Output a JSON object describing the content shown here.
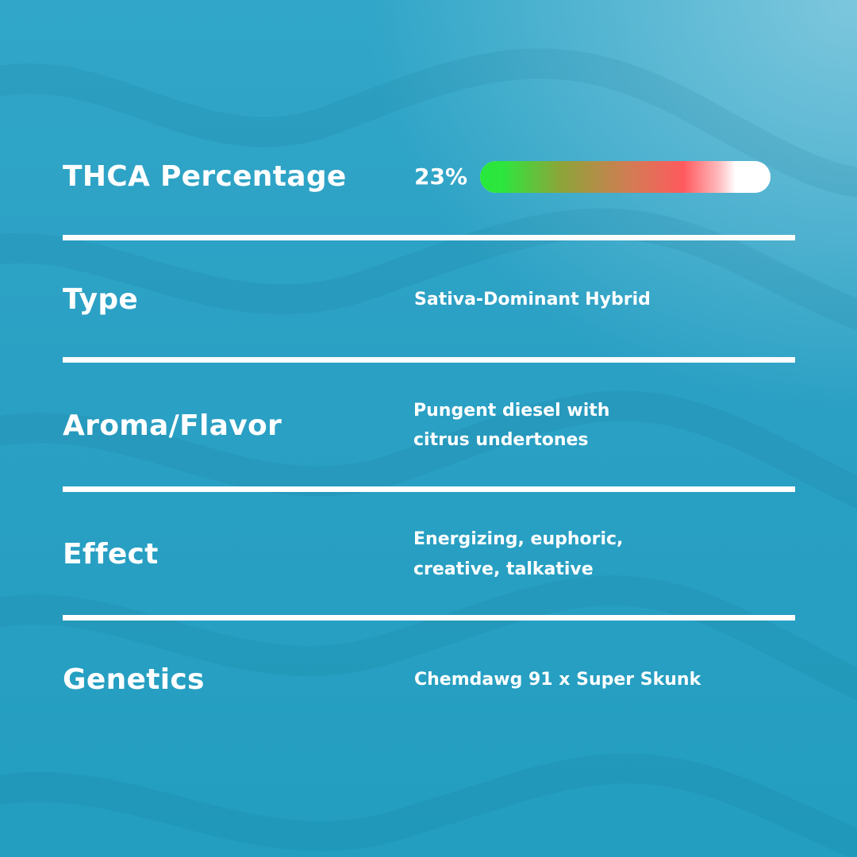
{
  "colors": {
    "background": "#2aa0c4",
    "text": "#ffffff",
    "divider": "#ffffff",
    "bar_green": "#27e83b",
    "bar_red": "#ff5a5e",
    "bar_track": "#ffffff"
  },
  "thca": {
    "label": "THCA Percentage",
    "value_text": "23%",
    "level_percent": 23
  },
  "type": {
    "label": "Type",
    "value": "Sativa-Dominant Hybrid"
  },
  "aroma": {
    "label": "Aroma/Flavor",
    "line1": "Pungent diesel with",
    "line2": "citrus undertones"
  },
  "effect": {
    "label": "Effect",
    "line1": "Energizing, euphoric,",
    "line2": "creative, talkative"
  },
  "genetics": {
    "label": "Genetics",
    "value": "Chemdawg 91 x Super Skunk"
  }
}
